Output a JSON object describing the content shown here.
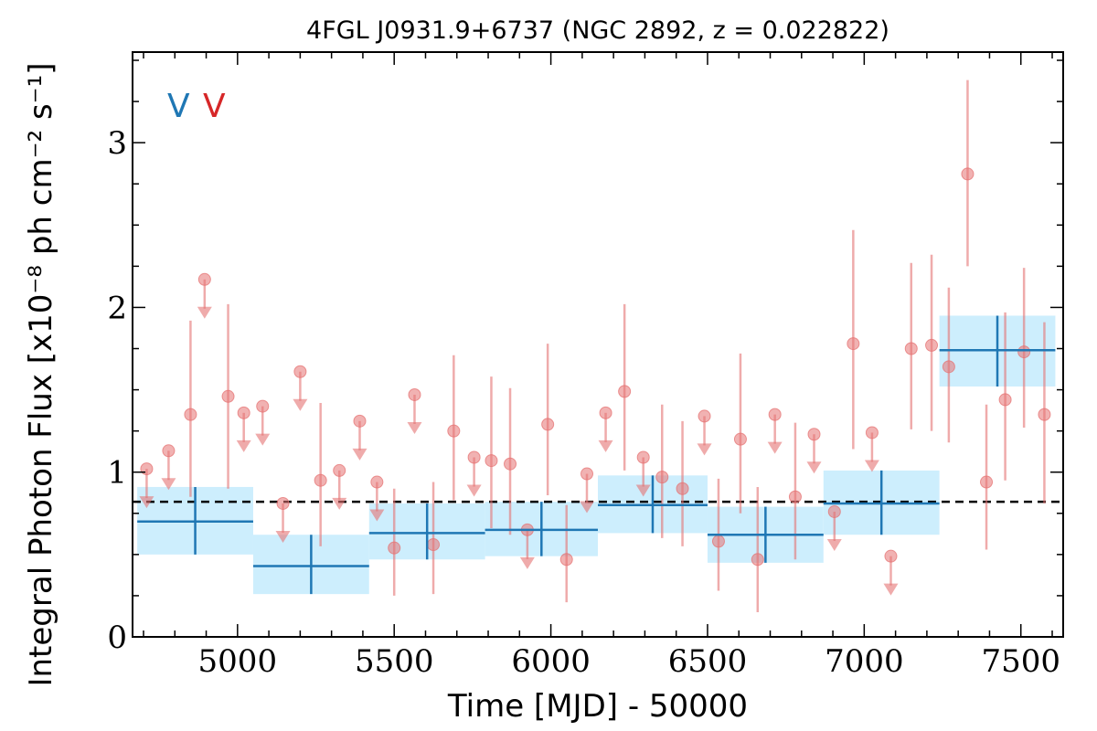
{
  "chart_data": {
    "type": "scatter",
    "title": "4FGL J0931.9+6737 (NGC 2892, z = 0.022822)",
    "xlabel": "Time [MJD] - 50000",
    "ylabel": "Integral Photon Flux [x10⁻⁸ ph cm⁻² s⁻¹]",
    "xlim": [
      4665,
      7635
    ],
    "ylim": [
      0,
      3.55
    ],
    "xticks": [
      5000,
      5500,
      6000,
      6500,
      7000,
      7500
    ],
    "yticks": [
      0,
      1,
      2,
      3
    ],
    "grid": false,
    "legend": {
      "position": "top-left",
      "labels": [
        "V",
        "V"
      ]
    },
    "mean_flux": 0.82,
    "colors": {
      "red_points": "#e57373",
      "blue_bins": "#1f77b4",
      "blue_band": "#cdeefd",
      "legend_blue": "#1f77b4",
      "legend_red": "#d62728"
    },
    "series": [
      {
        "points": [
          {
            "x": 4850,
            "y": 1.35,
            "lo": 0.85,
            "hi": 1.92
          },
          {
            "x": 4970,
            "y": 1.46,
            "lo": 0.9,
            "hi": 2.02
          },
          {
            "x": 5265,
            "y": 0.95,
            "lo": 0.55,
            "hi": 1.42
          },
          {
            "x": 5500,
            "y": 0.54,
            "lo": 0.25,
            "hi": 0.9
          },
          {
            "x": 5625,
            "y": 0.56,
            "lo": 0.26,
            "hi": 0.94
          },
          {
            "x": 5690,
            "y": 1.25,
            "lo": 0.83,
            "hi": 1.71
          },
          {
            "x": 5810,
            "y": 1.07,
            "lo": 0.66,
            "hi": 1.58
          },
          {
            "x": 5870,
            "y": 1.05,
            "lo": 0.62,
            "hi": 1.51
          },
          {
            "x": 5990,
            "y": 1.29,
            "lo": 0.86,
            "hi": 1.78
          },
          {
            "x": 6050,
            "y": 0.47,
            "lo": 0.21,
            "hi": 0.8
          },
          {
            "x": 6235,
            "y": 1.49,
            "lo": 1.01,
            "hi": 2.02
          },
          {
            "x": 6355,
            "y": 0.97,
            "lo": 0.6,
            "hi": 1.41
          },
          {
            "x": 6420,
            "y": 0.9,
            "lo": 0.55,
            "hi": 1.31
          },
          {
            "x": 6535,
            "y": 0.58,
            "lo": 0.28,
            "hi": 0.96
          },
          {
            "x": 6605,
            "y": 1.2,
            "lo": 0.75,
            "hi": 1.72
          },
          {
            "x": 6660,
            "y": 0.47,
            "lo": 0.15,
            "hi": 0.91
          },
          {
            "x": 6780,
            "y": 0.85,
            "lo": 0.47,
            "hi": 1.3
          },
          {
            "x": 6965,
            "y": 1.78,
            "lo": 1.14,
            "hi": 2.47
          },
          {
            "x": 7150,
            "y": 1.75,
            "lo": 1.26,
            "hi": 2.27
          },
          {
            "x": 7215,
            "y": 1.77,
            "lo": 1.25,
            "hi": 2.32
          },
          {
            "x": 7270,
            "y": 1.64,
            "lo": 1.18,
            "hi": 2.12
          },
          {
            "x": 7330,
            "y": 2.81,
            "lo": 2.25,
            "hi": 3.38
          },
          {
            "x": 7390,
            "y": 0.94,
            "lo": 0.53,
            "hi": 1.41
          },
          {
            "x": 7450,
            "y": 1.44,
            "lo": 0.95,
            "hi": 1.97
          },
          {
            "x": 7510,
            "y": 1.73,
            "lo": 1.27,
            "hi": 2.24
          },
          {
            "x": 7575,
            "y": 1.35,
            "lo": 0.81,
            "hi": 1.91
          }
        ],
        "upper_limits": [
          {
            "x": 4710,
            "y": 1.02
          },
          {
            "x": 4780,
            "y": 1.13
          },
          {
            "x": 4895,
            "y": 2.17
          },
          {
            "x": 5020,
            "y": 1.36
          },
          {
            "x": 5080,
            "y": 1.4
          },
          {
            "x": 5145,
            "y": 0.81
          },
          {
            "x": 5200,
            "y": 1.61
          },
          {
            "x": 5325,
            "y": 1.01
          },
          {
            "x": 5390,
            "y": 1.31
          },
          {
            "x": 5445,
            "y": 0.94
          },
          {
            "x": 5565,
            "y": 1.47
          },
          {
            "x": 5755,
            "y": 1.09
          },
          {
            "x": 5925,
            "y": 0.65
          },
          {
            "x": 6115,
            "y": 0.99
          },
          {
            "x": 6175,
            "y": 1.36
          },
          {
            "x": 6295,
            "y": 1.09
          },
          {
            "x": 6490,
            "y": 1.34
          },
          {
            "x": 6715,
            "y": 1.35
          },
          {
            "x": 6840,
            "y": 1.23
          },
          {
            "x": 6905,
            "y": 0.76
          },
          {
            "x": 7025,
            "y": 1.24
          },
          {
            "x": 7085,
            "y": 0.49
          }
        ]
      },
      {
        "bins": [
          {
            "x0": 4680,
            "x1": 5050,
            "y": 0.7,
            "lo": 0.5,
            "hi": 0.91
          },
          {
            "x0": 5050,
            "x1": 5420,
            "y": 0.43,
            "lo": 0.26,
            "hi": 0.62
          },
          {
            "x0": 5420,
            "x1": 5790,
            "y": 0.63,
            "lo": 0.47,
            "hi": 0.81
          },
          {
            "x0": 5790,
            "x1": 6150,
            "y": 0.65,
            "lo": 0.49,
            "hi": 0.82
          },
          {
            "x0": 6150,
            "x1": 6500,
            "y": 0.8,
            "lo": 0.63,
            "hi": 0.98
          },
          {
            "x0": 6500,
            "x1": 6870,
            "y": 0.62,
            "lo": 0.45,
            "hi": 0.79
          },
          {
            "x0": 6870,
            "x1": 7240,
            "y": 0.81,
            "lo": 0.62,
            "hi": 1.01
          },
          {
            "x0": 7240,
            "x1": 7610,
            "y": 1.74,
            "lo": 1.52,
            "hi": 1.95
          }
        ]
      }
    ]
  }
}
